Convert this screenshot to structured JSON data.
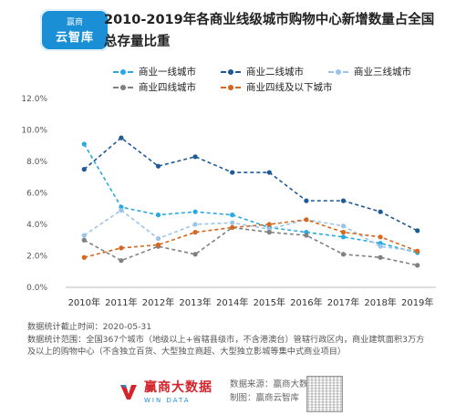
{
  "header": {
    "logo_line1": "赢商",
    "logo_line2": "云智库",
    "title_line1": "2010-2019年各商业线级城市购物中心新增数量占全国",
    "title_line2": "总存量比重"
  },
  "colors": {
    "tier1": "#29a9e0",
    "tier2": "#1f5a96",
    "tier3": "#9cc4e8",
    "tier4": "#808080",
    "tier5": "#d4681f"
  },
  "chart_data": {
    "type": "line",
    "title": "2010-2019年各商业线级城市购物中心新增数量占全国总存量比重",
    "x": [
      "2010年",
      "2011年",
      "2012年",
      "2013年",
      "2014年",
      "2015年",
      "2016年",
      "2017年",
      "2018年",
      "2019年"
    ],
    "ylim": [
      0,
      12
    ],
    "yticks": [
      "0.0%",
      "2.0%",
      "4.0%",
      "6.0%",
      "8.0%",
      "10.0%",
      "12.0%"
    ],
    "ytick_values": [
      0,
      2,
      4,
      6,
      8,
      10,
      12
    ],
    "grid": false,
    "legend_position": "top",
    "series": [
      {
        "name": "商业一线城市",
        "color": "#29a9e0",
        "values": [
          9.1,
          5.1,
          4.6,
          4.8,
          4.6,
          3.8,
          3.5,
          3.2,
          2.8,
          2.2
        ]
      },
      {
        "name": "商业二线城市",
        "color": "#1f5a96",
        "values": [
          7.5,
          9.5,
          7.7,
          8.3,
          7.3,
          7.3,
          5.5,
          5.5,
          4.8,
          3.6
        ]
      },
      {
        "name": "商业三线城市",
        "color": "#9cc4e8",
        "values": [
          3.3,
          4.9,
          3.1,
          4.0,
          4.1,
          3.7,
          4.3,
          3.9,
          2.6,
          2.3
        ]
      },
      {
        "name": "商业四线城市",
        "color": "#808080",
        "values": [
          3.0,
          1.7,
          2.6,
          2.1,
          3.8,
          3.5,
          3.3,
          2.1,
          1.9,
          1.4
        ]
      },
      {
        "name": "商业四线及以下城市",
        "color": "#d4681f",
        "values": [
          1.9,
          2.5,
          2.7,
          3.5,
          3.8,
          4.0,
          4.3,
          3.5,
          3.2,
          2.3
        ]
      }
    ]
  },
  "notes": {
    "line1": "数据统计截止时间：2020-05-31",
    "line2": "数据统计范围：全国367个城市（地级以上+省辖县级市，不含港澳台）管辖行政区内，商业建筑面积3万方",
    "line3": "及以上的购物中心（不含独立百货、大型独立商超、大型独立影城等集中式商业项目）"
  },
  "footer": {
    "brand_name": "赢商大数据",
    "brand_sub": "WIN DATA",
    "source_line1": "数据来源：赢商大数据",
    "source_line2": "制图：赢商云智库"
  }
}
